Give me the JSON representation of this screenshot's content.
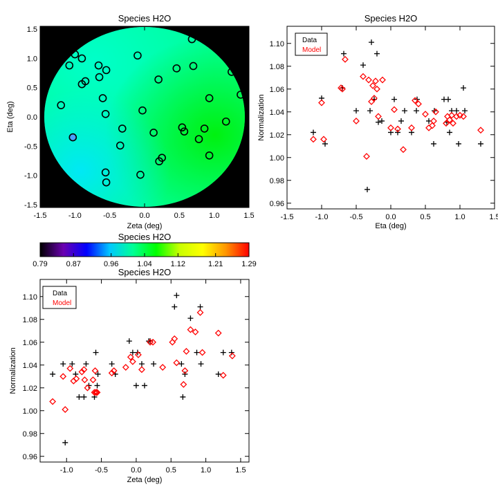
{
  "chart_data": [
    {
      "id": "map",
      "type": "scatter",
      "title": "Species H2O",
      "xlabel": "Zeta (deg)",
      "ylabel": "Eta (deg)",
      "xlim": [
        -1.5,
        1.5
      ],
      "ylim": [
        -1.55,
        1.55
      ],
      "xticks": [
        "-1.5",
        "-1.0",
        "-0.5",
        "0.0",
        "0.5",
        "1.0",
        "1.5"
      ],
      "yticks": [
        "-1.5",
        "-1.0",
        "-0.5",
        "0.0",
        "0.5",
        "1.0",
        "1.5"
      ],
      "field_colors": {
        "outside": "#000000",
        "upper_left": "#00ffd2",
        "center": "#00ff9a",
        "right": "#00f000",
        "lower_left": "#00e6ff"
      },
      "marker_edge_color": "#000000",
      "highlight_point_color": "#4aa0ff",
      "points": [
        {
          "x": 0.68,
          "y": 1.33
        },
        {
          "x": -1.0,
          "y": 1.07
        },
        {
          "x": -0.9,
          "y": 1.0
        },
        {
          "x": -0.1,
          "y": 1.05
        },
        {
          "x": -1.08,
          "y": 0.88
        },
        {
          "x": -0.66,
          "y": 0.88
        },
        {
          "x": 0.7,
          "y": 0.87
        },
        {
          "x": 0.46,
          "y": 0.83
        },
        {
          "x": -0.55,
          "y": 0.8
        },
        {
          "x": 1.25,
          "y": 0.77
        },
        {
          "x": -0.65,
          "y": 0.68
        },
        {
          "x": 0.2,
          "y": 0.64
        },
        {
          "x": -0.85,
          "y": 0.61
        },
        {
          "x": -0.9,
          "y": 0.56
        },
        {
          "x": 1.38,
          "y": 0.38
        },
        {
          "x": -0.6,
          "y": 0.32
        },
        {
          "x": 0.93,
          "y": 0.32
        },
        {
          "x": -1.2,
          "y": 0.2
        },
        {
          "x": -0.03,
          "y": 0.11
        },
        {
          "x": -0.56,
          "y": 0.05
        },
        {
          "x": 1.17,
          "y": -0.08
        },
        {
          "x": 0.54,
          "y": -0.18
        },
        {
          "x": -0.32,
          "y": -0.2
        },
        {
          "x": 0.86,
          "y": -0.2
        },
        {
          "x": 0.57,
          "y": -0.25
        },
        {
          "x": 0.13,
          "y": -0.27
        },
        {
          "x": 0.78,
          "y": -0.38
        },
        {
          "x": -1.03,
          "y": -0.35,
          "highlight": true
        },
        {
          "x": -0.35,
          "y": -0.49
        },
        {
          "x": 0.93,
          "y": -0.66
        },
        {
          "x": 0.25,
          "y": -0.7
        },
        {
          "x": 0.21,
          "y": -0.76
        },
        {
          "x": -0.56,
          "y": -0.95
        },
        {
          "x": -0.06,
          "y": -0.99
        },
        {
          "x": -0.55,
          "y": -1.12
        }
      ]
    },
    {
      "id": "eta",
      "type": "scatter",
      "title": "Species H2O",
      "xlabel": "Eta (deg)",
      "ylabel": "Normalization",
      "xlim": [
        -1.5,
        1.5
      ],
      "ylim": [
        0.955,
        1.115
      ],
      "xticks": [
        "-1.5",
        "-1.0",
        "-0.5",
        "0.0",
        "0.5",
        "1.0",
        "1.5"
      ],
      "yticks": [
        "0.96",
        "0.98",
        "1.00",
        "1.02",
        "1.04",
        "1.06",
        "1.08",
        "1.10"
      ],
      "legend": [
        "Data",
        "Model"
      ],
      "legend_colors": [
        "#000000",
        "#ff0000"
      ],
      "legend_position": "top-left",
      "series": [
        {
          "name": "Data",
          "color": "#000000",
          "marker": "plus",
          "x": [
            -1.12,
            -1.0,
            -0.95,
            -0.7,
            -0.68,
            -0.5,
            -0.4,
            -0.3,
            -0.28,
            -0.24,
            -0.2,
            -0.18,
            -0.13,
            0.0,
            0.05,
            0.1,
            0.15,
            0.2,
            0.3,
            0.37,
            0.38,
            0.55,
            0.62,
            0.63,
            0.77,
            0.81,
            0.83,
            0.85,
            0.95,
            0.98,
            1.05,
            1.07,
            1.3,
            0.88,
            -0.34
          ],
          "y": [
            1.022,
            1.052,
            1.012,
            1.061,
            1.091,
            1.041,
            1.081,
            1.041,
            1.101,
            1.051,
            1.091,
            1.031,
            1.032,
            1.022,
            1.051,
            1.022,
            1.032,
            1.041,
            1.022,
            1.041,
            1.051,
            1.032,
            1.012,
            1.041,
            1.051,
            1.031,
            1.051,
            1.022,
            1.041,
            1.012,
            1.061,
            1.041,
            1.012,
            1.041,
            0.972
          ]
        },
        {
          "name": "Model",
          "color": "#ff0000",
          "marker": "diamond",
          "x": [
            -1.12,
            -1.0,
            -0.97,
            -0.72,
            -0.7,
            -0.66,
            -0.5,
            -0.4,
            -0.35,
            -0.32,
            -0.28,
            -0.26,
            -0.24,
            -0.22,
            -0.2,
            -0.18,
            -0.12,
            0.0,
            0.05,
            0.1,
            0.18,
            0.3,
            0.35,
            0.4,
            0.5,
            0.55,
            0.6,
            0.62,
            0.65,
            0.8,
            0.82,
            0.85,
            0.88,
            0.9,
            0.95,
            1.0,
            1.05,
            1.3
          ],
          "y": [
            1.016,
            1.048,
            1.016,
            1.061,
            1.06,
            1.086,
            1.032,
            1.071,
            1.001,
            1.068,
            1.049,
            1.063,
            1.052,
            1.067,
            1.06,
            1.036,
            1.068,
            1.026,
            1.042,
            1.025,
            1.007,
            1.026,
            1.05,
            1.047,
            1.038,
            1.026,
            1.028,
            1.032,
            1.04,
            1.03,
            1.036,
            1.033,
            1.037,
            1.03,
            1.036,
            1.037,
            1.036,
            1.024
          ]
        }
      ]
    },
    {
      "id": "colorbar",
      "type": "heatmap",
      "title": "Species H2O",
      "ticks": [
        "0.79",
        "0.87",
        "0.96",
        "1.04",
        "1.12",
        "1.21",
        "1.29"
      ],
      "range": [
        0.79,
        1.29
      ],
      "colormap": [
        "#000000",
        "#6b00b0",
        "#0000ff",
        "#00c8ff",
        "#00ff96",
        "#00ff00",
        "#c8ff00",
        "#ffff00",
        "#ff9600",
        "#ff0000"
      ]
    },
    {
      "id": "zeta",
      "type": "scatter",
      "title": "Species H2O",
      "xlabel": "Zeta (deg)",
      "ylabel": "Normalization",
      "xlim": [
        -1.38,
        1.62
      ],
      "ylim": [
        0.955,
        1.115
      ],
      "xticks": [
        "-1.0",
        "-0.5",
        "0.0",
        "0.5",
        "1.0",
        "1.5"
      ],
      "yticks": [
        "0.96",
        "0.98",
        "1.00",
        "1.02",
        "1.04",
        "1.06",
        "1.08",
        "1.10"
      ],
      "legend": [
        "Data",
        "Model"
      ],
      "legend_colors": [
        "#000000",
        "#ff0000"
      ],
      "legend_position": "top-left",
      "series": [
        {
          "name": "Data",
          "color": "#000000",
          "marker": "plus",
          "x": [
            -1.2,
            -1.05,
            -0.92,
            -0.87,
            -0.82,
            -0.75,
            -0.72,
            -0.68,
            -0.6,
            -0.58,
            -0.56,
            -0.55,
            -0.35,
            -0.3,
            -0.1,
            -0.05,
            0.0,
            0.02,
            0.08,
            0.12,
            0.18,
            0.2,
            0.25,
            0.55,
            0.58,
            0.65,
            0.67,
            0.7,
            0.78,
            0.87,
            0.92,
            0.93,
            1.18,
            1.25,
            1.37,
            -1.02
          ],
          "y": [
            1.032,
            1.041,
            1.041,
            1.032,
            1.012,
            1.012,
            1.041,
            1.022,
            1.012,
            1.051,
            1.022,
            1.032,
            1.041,
            1.032,
            1.061,
            1.051,
            1.022,
            1.051,
            1.041,
            1.022,
            1.061,
            1.061,
            1.041,
            1.091,
            1.101,
            1.041,
            1.012,
            1.032,
            1.081,
            1.051,
            1.091,
            1.041,
            1.032,
            1.051,
            1.051,
            0.972
          ]
        },
        {
          "name": "Model",
          "color": "#ff0000",
          "marker": "diamond",
          "x": [
            -1.2,
            -1.05,
            -1.02,
            -0.95,
            -0.9,
            -0.86,
            -0.78,
            -0.75,
            -0.74,
            -0.7,
            -0.62,
            -0.6,
            -0.59,
            -0.58,
            -0.57,
            -0.56,
            -0.35,
            -0.32,
            -0.15,
            -0.08,
            -0.05,
            0.03,
            0.08,
            0.2,
            0.24,
            0.38,
            0.52,
            0.55,
            0.58,
            0.68,
            0.7,
            0.72,
            0.78,
            0.85,
            0.92,
            0.95,
            1.18,
            1.25,
            1.38
          ],
          "y": [
            1.008,
            1.03,
            1.001,
            1.037,
            1.026,
            1.028,
            1.034,
            1.036,
            1.027,
            1.02,
            1.027,
            1.016,
            1.035,
            1.016,
            1.016,
            1.016,
            1.033,
            1.035,
            1.038,
            1.047,
            1.043,
            1.049,
            1.036,
            1.06,
            1.06,
            1.038,
            1.06,
            1.063,
            1.042,
            1.023,
            1.035,
            1.052,
            1.071,
            1.069,
            1.086,
            1.051,
            1.068,
            1.031,
            1.048
          ]
        }
      ]
    }
  ]
}
